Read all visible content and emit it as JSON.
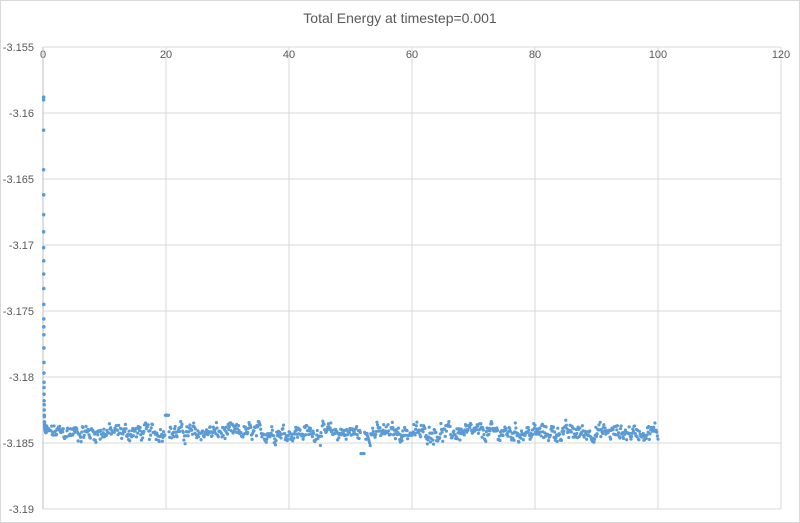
{
  "chart_data": {
    "type": "scatter",
    "title": "Total Energy at timestep=0.001",
    "xlabel": "",
    "ylabel": "",
    "xlim": [
      0,
      120
    ],
    "ylim": [
      -3.19,
      -3.155
    ],
    "x_ticks": [
      0,
      20,
      40,
      60,
      80,
      100,
      120
    ],
    "y_ticks": [
      -3.155,
      -3.16,
      -3.165,
      -3.17,
      -3.175,
      -3.18,
      -3.185,
      -3.19
    ],
    "x_tick_labels": [
      "0",
      "20",
      "40",
      "60",
      "80",
      "100",
      "120"
    ],
    "y_tick_labels": [
      "-3.155",
      "-3.16",
      "-3.165",
      "-3.17",
      "-3.175",
      "-3.18",
      "-3.185",
      "-3.19"
    ],
    "x_axis_position": "top",
    "grid": true,
    "legend": "none",
    "marker_color": "#5b9bd5",
    "series": [
      {
        "initial_transient": {
          "x": [
            0.1,
            0.1,
            0.1,
            0.1,
            0.11,
            0.11,
            0.11,
            0.11,
            0.12,
            0.12,
            0.12,
            0.13,
            0.13,
            0.13,
            0.14,
            0.14,
            0.15,
            0.15,
            0.16,
            0.16,
            0.17,
            0.18,
            0.19,
            0.2,
            0.21,
            0.22,
            0.24,
            0.26,
            0.28,
            0.3,
            0.33,
            0.36,
            0.4,
            0.45,
            0.5
          ],
          "y": [
            -3.1588,
            -3.159,
            -3.1613,
            -3.1643,
            -3.1662,
            -3.1677,
            -3.169,
            -3.1702,
            -3.1712,
            -3.1722,
            -3.1733,
            -3.1745,
            -3.1756,
            -3.1762,
            -3.1768,
            -3.1778,
            -3.1789,
            -3.1797,
            -3.1804,
            -3.1808,
            -3.1813,
            -3.1818,
            -3.1821,
            -3.1825,
            -3.1829,
            -3.183,
            -3.1834,
            -3.1836,
            -3.1837,
            -3.1838,
            -3.1839,
            -3.184,
            -3.1841,
            -3.1842,
            -3.1842
          ]
        },
        "steady_state": {
          "x_start": 0.5,
          "x_end": 100.0,
          "x_step": 0.1,
          "mean": -3.1842,
          "fluctuation_amplitude": 0.0009,
          "min": -3.1858,
          "max": -3.1829
        }
      }
    ]
  }
}
